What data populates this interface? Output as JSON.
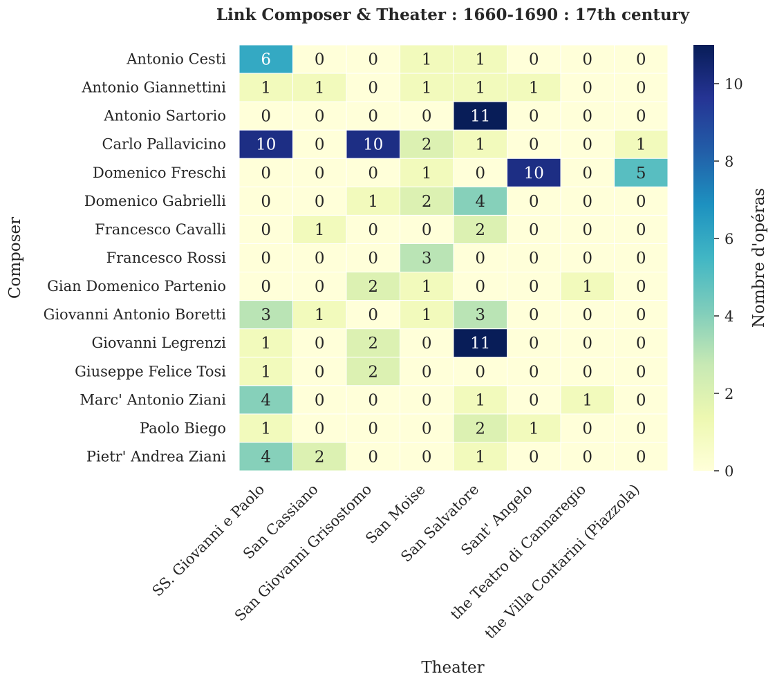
{
  "chart_data": {
    "type": "heatmap",
    "title": "Link Composer & Theater : 1660-1690 : 17th century",
    "xlabel": "Theater",
    "ylabel": "Composer",
    "colorbar_label": "Nombre d'opéras",
    "colorbar_ticks": [
      0,
      2,
      4,
      6,
      8,
      10
    ],
    "vmin": 0,
    "vmax": 11,
    "colormap": "YlGnBu",
    "colormap_stops": [
      "#ffffd9",
      "#edf8b1",
      "#c7e9b4",
      "#7fcdbb",
      "#41b6c4",
      "#1d91c0",
      "#225ea8",
      "#253494",
      "#081d58"
    ],
    "x_categories": [
      "SS. Giovanni e Paolo",
      "San Cassiano",
      "San Giovanni Grisostomo",
      "San Moise",
      "San Salvatore",
      "Sant' Angelo",
      "the Teatro di Cannaregio",
      "the Villa Contarini (Piazzola)"
    ],
    "y_categories": [
      "Antonio Cesti",
      "Antonio Giannettini",
      "Antonio Sartorio",
      "Carlo Pallavicino",
      "Domenico Freschi",
      "Domenico Gabrielli",
      "Francesco Cavalli",
      "Francesco Rossi",
      "Gian Domenico Partenio",
      "Giovanni Antonio Boretti",
      "Giovanni Legrenzi",
      "Giuseppe Felice Tosi",
      "Marc' Antonio Ziani",
      "Paolo Biego",
      "Pietr' Andrea Ziani"
    ],
    "values": [
      [
        6,
        0,
        0,
        1,
        1,
        0,
        0,
        0
      ],
      [
        1,
        1,
        0,
        1,
        1,
        1,
        0,
        0
      ],
      [
        0,
        0,
        0,
        0,
        11,
        0,
        0,
        0
      ],
      [
        10,
        0,
        10,
        2,
        1,
        0,
        0,
        1
      ],
      [
        0,
        0,
        0,
        1,
        0,
        10,
        0,
        5
      ],
      [
        0,
        0,
        1,
        2,
        4,
        0,
        0,
        0
      ],
      [
        0,
        1,
        0,
        0,
        2,
        0,
        0,
        0
      ],
      [
        0,
        0,
        0,
        3,
        0,
        0,
        0,
        0
      ],
      [
        0,
        0,
        2,
        1,
        0,
        0,
        1,
        0
      ],
      [
        3,
        1,
        0,
        1,
        3,
        0,
        0,
        0
      ],
      [
        1,
        0,
        2,
        0,
        11,
        0,
        0,
        0
      ],
      [
        1,
        0,
        2,
        0,
        0,
        0,
        0,
        0
      ],
      [
        4,
        0,
        0,
        0,
        1,
        0,
        1,
        0
      ],
      [
        1,
        0,
        0,
        0,
        2,
        1,
        0,
        0
      ],
      [
        4,
        2,
        0,
        0,
        1,
        0,
        0,
        0
      ]
    ]
  }
}
